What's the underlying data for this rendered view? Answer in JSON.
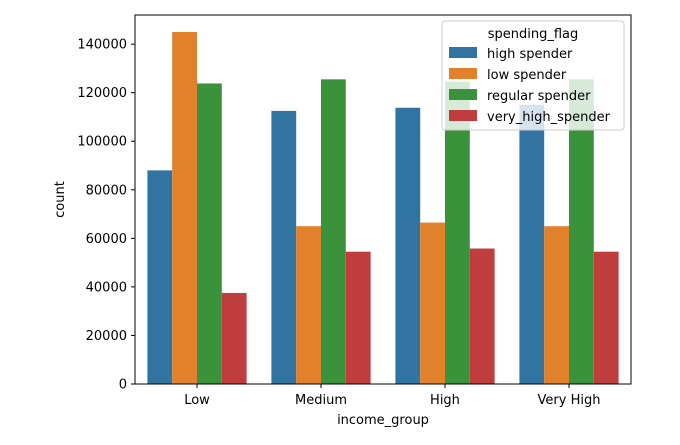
{
  "chart_data": {
    "type": "bar",
    "xlabel": "income_group",
    "ylabel": "count",
    "categories": [
      "Low",
      "Medium",
      "High",
      "Very High"
    ],
    "ylim": [
      0,
      152000
    ],
    "yticks": [
      0,
      20000,
      40000,
      60000,
      80000,
      100000,
      120000,
      140000
    ],
    "grid": false,
    "legend": {
      "title": "spending_flag",
      "placement": "top-right"
    },
    "series": [
      {
        "name": "high spender",
        "color": "#3274a1",
        "values": [
          88000,
          112500,
          113800,
          115000
        ]
      },
      {
        "name": "low spender",
        "color": "#e1812c",
        "values": [
          145000,
          65000,
          66500,
          65000
        ]
      },
      {
        "name": "regular spender",
        "color": "#3a923a",
        "values": [
          123800,
          125500,
          124500,
          125500
        ]
      },
      {
        "name": "very_high_spender",
        "color": "#c03d3e",
        "values": [
          37500,
          54500,
          55800,
          54500
        ]
      }
    ]
  }
}
